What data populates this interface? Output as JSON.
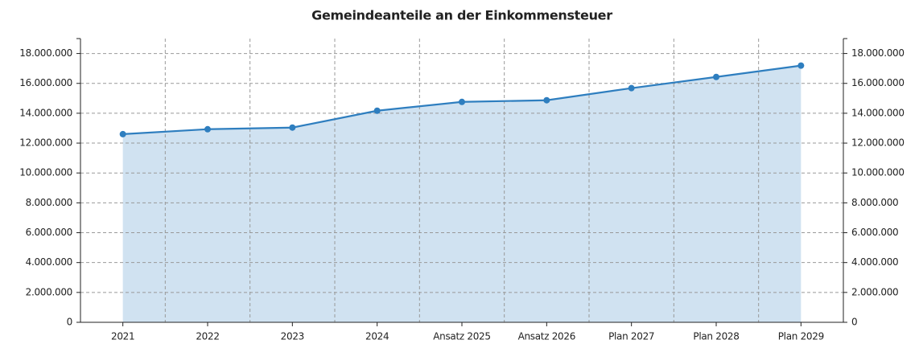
{
  "chart_data": {
    "type": "area",
    "title": "Gemeindeanteile an der Einkommensteuer",
    "categories": [
      "2021",
      "2022",
      "2023",
      "2024",
      "Ansatz 2025",
      "Ansatz 2026",
      "Plan 2027",
      "Plan 2028",
      "Plan 2029"
    ],
    "series": [
      {
        "name": "Gemeindeanteile an der Einkommensteuer",
        "color": "#2e7ebf",
        "fill": "#d0e2f1",
        "values": [
          12600000,
          12930000,
          13040000,
          14170000,
          14760000,
          14870000,
          15680000,
          16430000,
          17190000
        ]
      }
    ],
    "ylim": [
      0,
      19000000
    ],
    "yticks": [
      0,
      {
        "value": 2000000,
        "label": "2.000.000"
      },
      {
        "value": 4000000,
        "label": "4.000.000"
      },
      {
        "value": 6000000,
        "label": "6.000.000"
      },
      {
        "value": 8000000,
        "label": "8.000.000"
      },
      {
        "value": 10000000,
        "label": "10.000.000"
      },
      {
        "value": 12000000,
        "label": "12.000.000"
      },
      {
        "value": 14000000,
        "label": "14.000.000"
      },
      {
        "value": 16000000,
        "label": "16.000.000"
      },
      {
        "value": 18000000,
        "label": "18.000.000"
      }
    ],
    "y2lim": [
      0,
      19000000
    ],
    "y2ticks": [
      0,
      {
        "value": 2000000,
        "label": "2.000.000"
      },
      {
        "value": 4000000,
        "label": "4.000.000"
      },
      {
        "value": 6000000,
        "label": "6.000.000"
      },
      {
        "value": 8000000,
        "label": "8.000.000"
      },
      {
        "value": 10000000,
        "label": "10.000.000"
      },
      {
        "value": 12000000,
        "label": "12.000.000"
      },
      {
        "value": 14000000,
        "label": "14.000.000"
      },
      {
        "value": 16000000,
        "label": "16.000.000"
      },
      {
        "value": 18000000,
        "label": "18.000.000"
      }
    ],
    "grid": true
  }
}
